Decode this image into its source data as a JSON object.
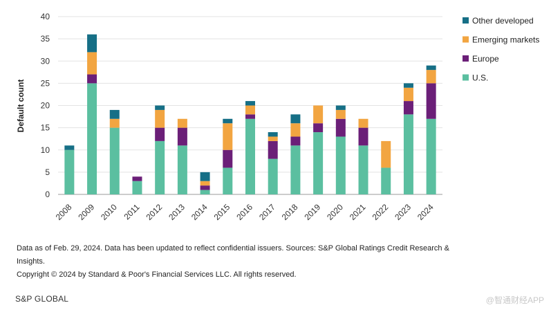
{
  "chart_data": {
    "type": "bar",
    "stacked": true,
    "categories": [
      "2008",
      "2009",
      "2010",
      "2011",
      "2012",
      "2013",
      "2014",
      "2015",
      "2016",
      "2017",
      "2018",
      "2019",
      "2020",
      "2021",
      "2022",
      "2023",
      "2024"
    ],
    "series": [
      {
        "name": "U.S.",
        "color": "#5bbfa0",
        "values": [
          10,
          25,
          15,
          3,
          12,
          11,
          1,
          6,
          17,
          8,
          11,
          14,
          13,
          11,
          6,
          18,
          17
        ]
      },
      {
        "name": "Europe",
        "color": "#6b1f78",
        "values": [
          0,
          2,
          0,
          1,
          3,
          4,
          1,
          4,
          1,
          4,
          2,
          2,
          4,
          4,
          0,
          3,
          8
        ]
      },
      {
        "name": "Emerging markets",
        "color": "#f2a541",
        "values": [
          0,
          5,
          2,
          0,
          4,
          2,
          1,
          6,
          2,
          1,
          3,
          4,
          2,
          2,
          6,
          3,
          3
        ]
      },
      {
        "name": "Other developed",
        "color": "#166f86",
        "values": [
          1,
          4,
          2,
          0,
          1,
          0,
          2,
          1,
          1,
          1,
          2,
          0,
          1,
          0,
          0,
          1,
          1
        ]
      }
    ],
    "ylabel": "Default count",
    "ylim": [
      0,
      40
    ],
    "yticks": [
      0,
      5,
      10,
      15,
      20,
      25,
      30,
      35,
      40
    ],
    "grid": true,
    "legend_position": "right"
  },
  "legend_order": [
    "Other developed",
    "Emerging markets",
    "Europe",
    "U.S."
  ],
  "notes": {
    "line1": "Data as of Feb. 29, 2024. Data has been updated to reflect confidential issuers. Sources: S&P Global Ratings Credit Research & Insights.",
    "line2": "Copyright © 2024 by Standard & Poor's Financial Services LLC. All rights reserved."
  },
  "brand": "S&P GLOBAL",
  "watermark": "@智通财经APP"
}
